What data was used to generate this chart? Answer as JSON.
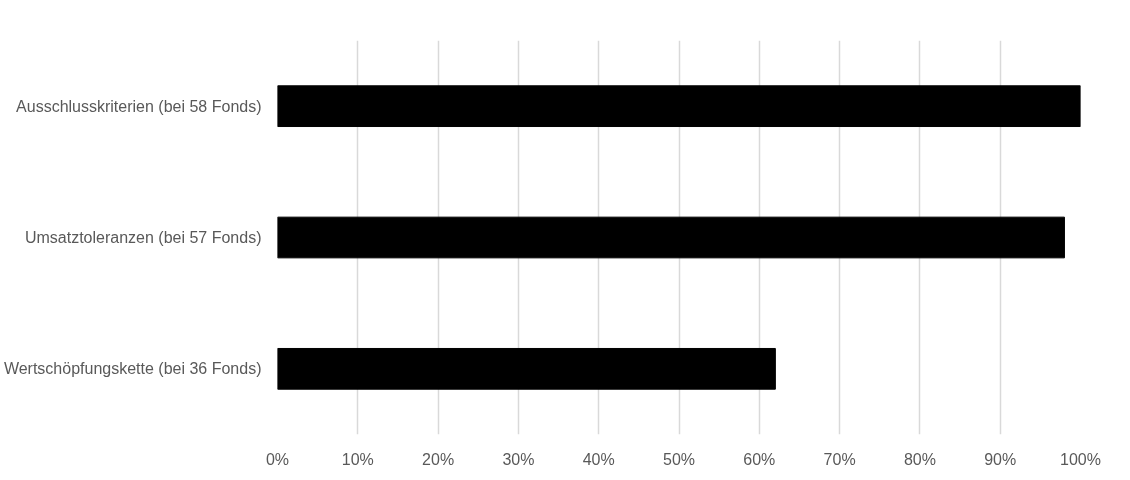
{
  "chart_data": {
    "type": "bar",
    "orientation": "horizontal",
    "categories": [
      "Ausschlusskriterien (bei 58 Fonds)",
      "Umsatztoleranzen (bei 57 Fonds)",
      "Wertschöpfungskette (bei 36 Fonds)"
    ],
    "values": [
      100,
      98,
      62
    ],
    "color": "#000000",
    "xlim": [
      0,
      100
    ],
    "xticks": [
      {
        "value": 0,
        "label": "0%"
      },
      {
        "value": 10,
        "label": "10%"
      },
      {
        "value": 20,
        "label": "20%"
      },
      {
        "value": 30,
        "label": "30%"
      },
      {
        "value": 40,
        "label": "40%"
      },
      {
        "value": 50,
        "label": "50%"
      },
      {
        "value": 60,
        "label": "60%"
      },
      {
        "value": 70,
        "label": "70%"
      },
      {
        "value": 80,
        "label": "80%"
      },
      {
        "value": 90,
        "label": "90%"
      },
      {
        "value": 100,
        "label": "100%"
      }
    ],
    "grid": "x"
  }
}
